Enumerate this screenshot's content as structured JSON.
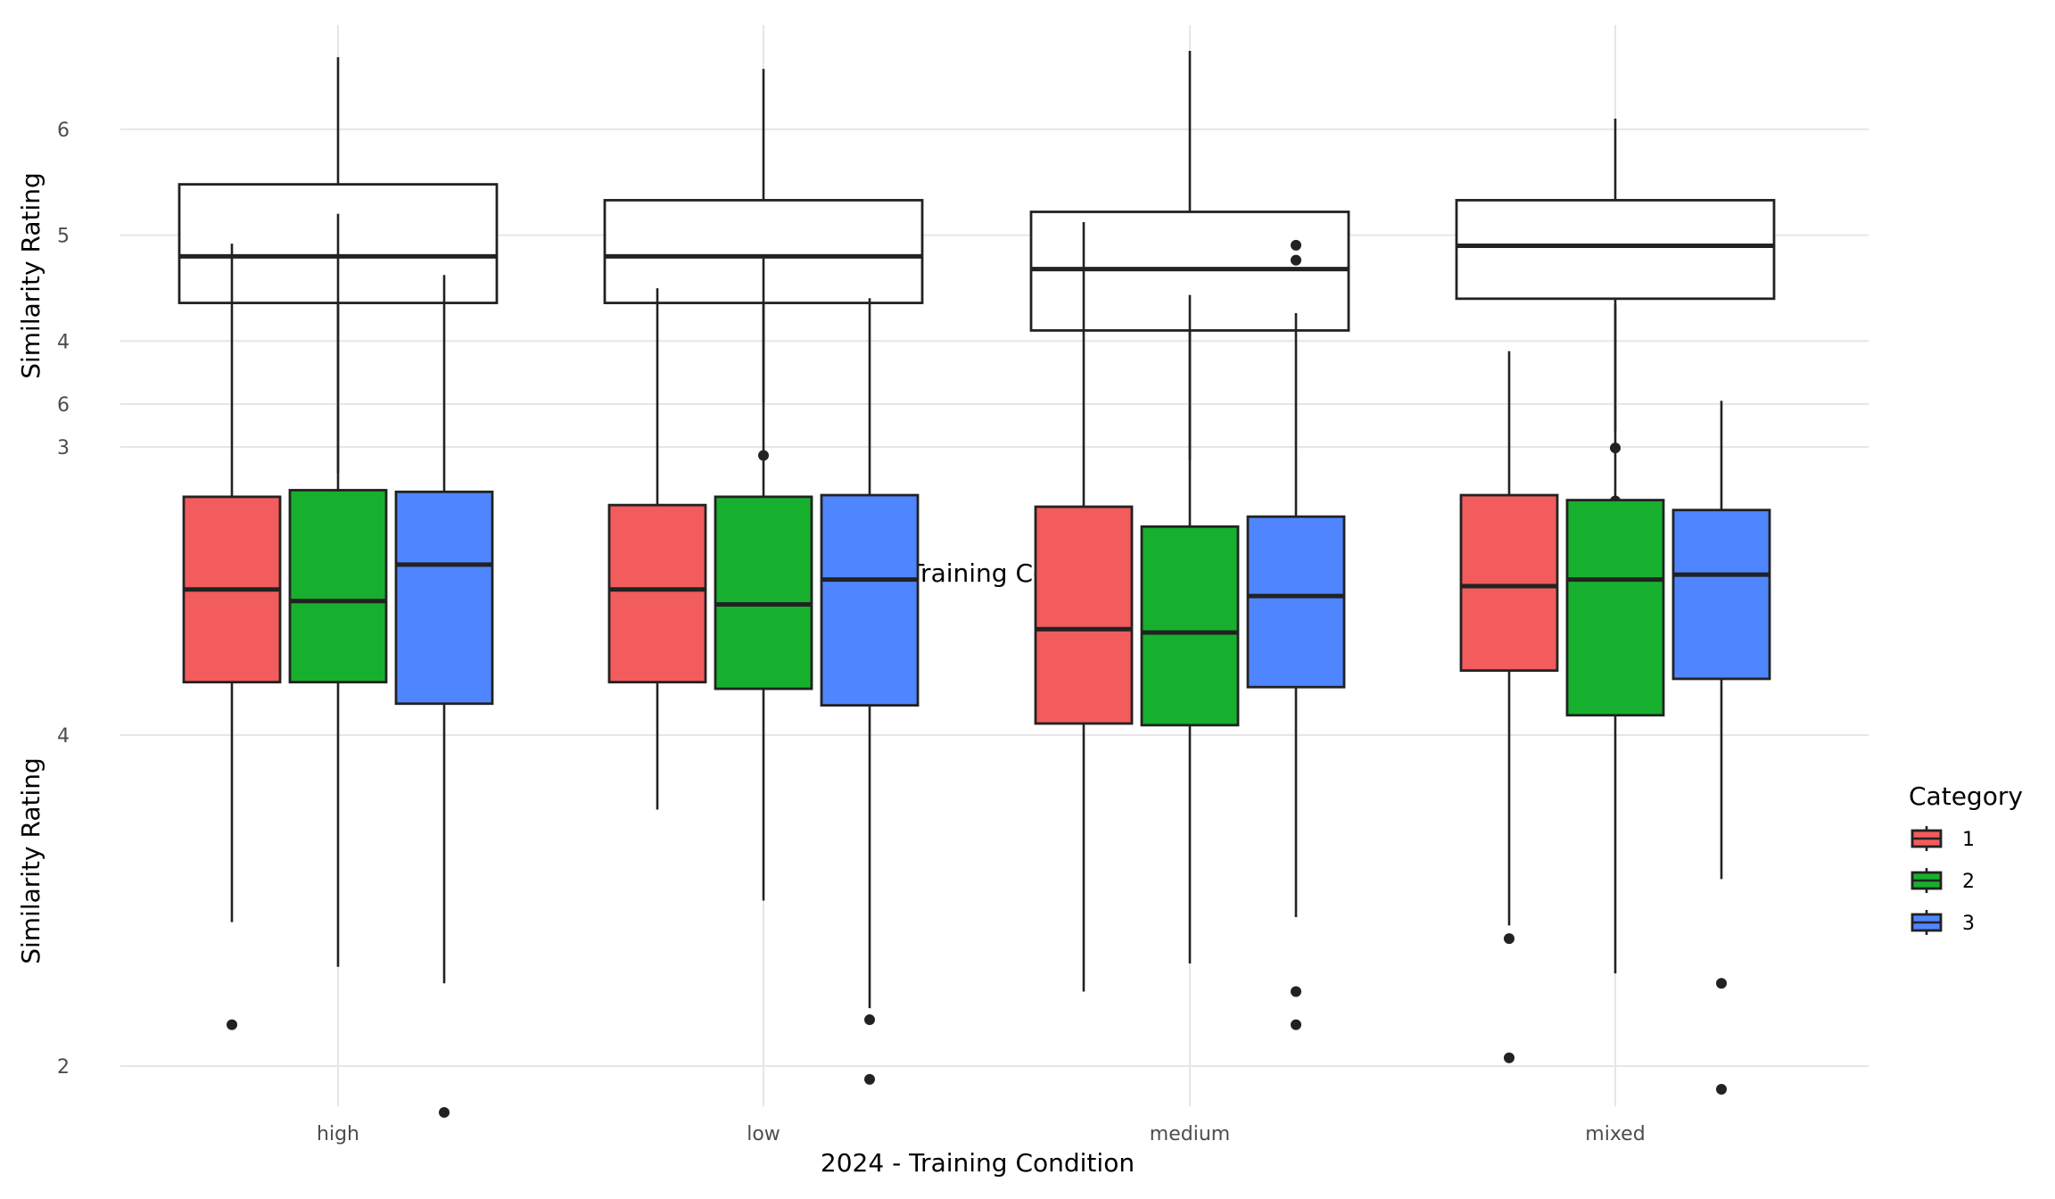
{
  "colors": {
    "cat1": "#F25C5C",
    "cat2": "#17B02E",
    "cat3": "#4F86FF",
    "plain": "#FFFFFF"
  },
  "chart_data": [
    {
      "type": "box",
      "xlabel": "2024 - Training Condition",
      "ylabel": "Similarity Rating",
      "categories": [
        "high",
        "low",
        "medium",
        "mixed"
      ],
      "ylim": [
        2.2,
        6.95
      ],
      "yticks": [
        3,
        4,
        5,
        6
      ],
      "grid": true,
      "boxes": [
        {
          "category": "high",
          "min": 2.75,
          "q1": 4.36,
          "median": 4.8,
          "q3": 5.48,
          "max": 6.68,
          "outliers": []
        },
        {
          "category": "low",
          "min": 3.42,
          "q1": 4.36,
          "median": 4.8,
          "q3": 5.33,
          "max": 6.57,
          "outliers": [
            2.92
          ]
        },
        {
          "category": "medium",
          "min": 2.88,
          "q1": 4.1,
          "median": 4.68,
          "q3": 5.22,
          "max": 6.74,
          "outliers": []
        },
        {
          "category": "mixed",
          "min": 3.15,
          "q1": 4.4,
          "median": 4.9,
          "q3": 5.33,
          "max": 6.1,
          "outliers": [
            2.99,
            2.49
          ]
        }
      ]
    },
    {
      "type": "box",
      "xlabel": "2024 - Training Condition",
      "ylabel": "Similarity Rating",
      "categories": [
        "high",
        "low",
        "medium",
        "mixed"
      ],
      "ylim": [
        1.5,
        7.35
      ],
      "yticks": [
        2,
        4,
        6
      ],
      "grid": true,
      "legend": {
        "title": "Category",
        "entries": [
          "1",
          "2",
          "3"
        ],
        "placement": "right"
      },
      "series": [
        {
          "name": "1",
          "boxes": [
            {
              "category": "high",
              "min": 2.87,
              "q1": 4.32,
              "median": 4.88,
              "q3": 5.44,
              "max": 6.97,
              "outliers": [
                2.25
              ]
            },
            {
              "category": "low",
              "min": 3.55,
              "q1": 4.32,
              "median": 4.88,
              "q3": 5.39,
              "max": 6.7,
              "outliers": []
            },
            {
              "category": "medium",
              "min": 2.45,
              "q1": 4.07,
              "median": 4.64,
              "q3": 5.38,
              "max": 7.1,
              "outliers": []
            },
            {
              "category": "mixed",
              "min": 2.85,
              "q1": 4.39,
              "median": 4.9,
              "q3": 5.45,
              "max": 6.32,
              "outliers": [
                2.77,
                2.05
              ]
            }
          ]
        },
        {
          "name": "2",
          "boxes": [
            {
              "category": "high",
              "min": 2.6,
              "q1": 4.32,
              "median": 4.81,
              "q3": 5.48,
              "max": 7.15,
              "outliers": []
            },
            {
              "category": "low",
              "min": 3.0,
              "q1": 4.28,
              "median": 4.79,
              "q3": 5.44,
              "max": 6.88,
              "outliers": []
            },
            {
              "category": "medium",
              "min": 2.62,
              "q1": 4.06,
              "median": 4.62,
              "q3": 5.26,
              "max": 6.66,
              "outliers": []
            },
            {
              "category": "mixed",
              "min": 2.56,
              "q1": 4.12,
              "median": 4.94,
              "q3": 5.42,
              "max": 6.6,
              "outliers": []
            }
          ]
        },
        {
          "name": "3",
          "boxes": [
            {
              "category": "high",
              "min": 2.5,
              "q1": 4.19,
              "median": 5.03,
              "q3": 5.47,
              "max": 6.78,
              "outliers": [
                1.72
              ]
            },
            {
              "category": "low",
              "min": 2.35,
              "q1": 4.18,
              "median": 4.94,
              "q3": 5.45,
              "max": 6.64,
              "outliers": [
                2.28,
                1.92
              ]
            },
            {
              "category": "medium",
              "min": 2.9,
              "q1": 4.29,
              "median": 4.84,
              "q3": 5.32,
              "max": 6.55,
              "outliers": [
                2.45,
                2.25,
                6.87,
                6.96
              ]
            },
            {
              "category": "mixed",
              "min": 3.13,
              "q1": 4.34,
              "median": 4.97,
              "q3": 5.36,
              "max": 6.02,
              "outliers": [
                2.5,
                1.86
              ]
            }
          ]
        }
      ]
    }
  ]
}
